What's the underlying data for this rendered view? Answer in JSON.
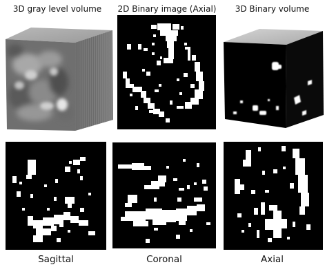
{
  "labels": {
    "gray_volume": "3D gray level volume",
    "binary_axial_2d": "2D Binary image (Axial)",
    "binary_volume": "3D Binary volume",
    "sagittal": "Sagittal",
    "coronal": "Coronal",
    "axial": "Axial"
  },
  "colors": {
    "background": "#ffffff",
    "slice": "#000000",
    "foreground": "#ffffff"
  }
}
